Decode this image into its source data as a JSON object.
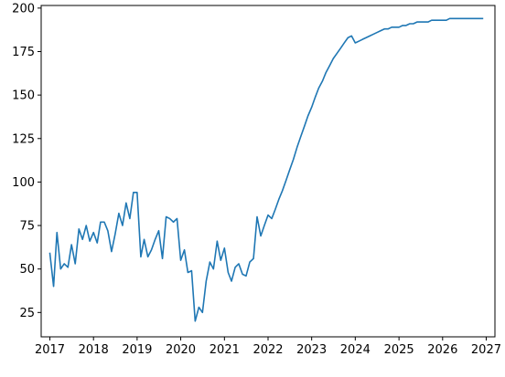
{
  "chart_data": {
    "type": "line",
    "title": "",
    "xlabel": "",
    "ylabel": "",
    "xlim": [
      "2016-10-20",
      "2027-03-15"
    ],
    "ylim": [
      11,
      201.5
    ],
    "xticks": [
      {
        "value": "2017-01-01",
        "label": "2017"
      },
      {
        "value": "2018-01-01",
        "label": "2018"
      },
      {
        "value": "2019-01-01",
        "label": "2019"
      },
      {
        "value": "2020-01-01",
        "label": "2020"
      },
      {
        "value": "2021-01-01",
        "label": "2021"
      },
      {
        "value": "2022-01-01",
        "label": "2022"
      },
      {
        "value": "2023-01-01",
        "label": "2023"
      },
      {
        "value": "2024-01-01",
        "label": "2024"
      },
      {
        "value": "2025-01-01",
        "label": "2025"
      },
      {
        "value": "2026-01-01",
        "label": "2026"
      },
      {
        "value": "2027-01-01",
        "label": "2027"
      }
    ],
    "yticks": [
      {
        "value": 25,
        "label": "25"
      },
      {
        "value": 50,
        "label": "50"
      },
      {
        "value": 75,
        "label": "75"
      },
      {
        "value": 100,
        "label": "100"
      },
      {
        "value": 125,
        "label": "125"
      },
      {
        "value": 150,
        "label": "150"
      },
      {
        "value": 175,
        "label": "175"
      },
      {
        "value": 200,
        "label": "200"
      }
    ],
    "grid": false,
    "legend": "none",
    "color": "#1f77b4",
    "series": [
      {
        "x": [
          "2017-01-01",
          "2017-02-01",
          "2017-03-01",
          "2017-04-01",
          "2017-05-01",
          "2017-06-01",
          "2017-07-01",
          "2017-08-01",
          "2017-09-01",
          "2017-10-01",
          "2017-11-01",
          "2017-12-01",
          "2018-01-01",
          "2018-02-01",
          "2018-03-01",
          "2018-04-01",
          "2018-05-01",
          "2018-06-01",
          "2018-07-01",
          "2018-08-01",
          "2018-09-01",
          "2018-10-01",
          "2018-11-01",
          "2018-12-01",
          "2019-01-01",
          "2019-02-01",
          "2019-03-01",
          "2019-04-01",
          "2019-05-01",
          "2019-06-01",
          "2019-07-01",
          "2019-08-01",
          "2019-09-01",
          "2019-10-01",
          "2019-11-01",
          "2019-12-01",
          "2020-01-01",
          "2020-02-01",
          "2020-03-01",
          "2020-04-01",
          "2020-05-01",
          "2020-06-01",
          "2020-07-01",
          "2020-08-01",
          "2020-09-01",
          "2020-10-01",
          "2020-11-01",
          "2020-12-01",
          "2021-01-01",
          "2021-02-01",
          "2021-03-01",
          "2021-04-01",
          "2021-05-01",
          "2021-06-01",
          "2021-07-01",
          "2021-08-01",
          "2021-09-01",
          "2021-10-01",
          "2021-11-01",
          "2021-12-01",
          "2022-01-01",
          "2022-02-01",
          "2022-03-01",
          "2022-04-01",
          "2022-05-01",
          "2022-06-01",
          "2022-07-01",
          "2022-08-01",
          "2022-09-01",
          "2022-10-01",
          "2022-11-01",
          "2022-12-01",
          "2023-01-01",
          "2023-02-01",
          "2023-03-01",
          "2023-04-01",
          "2023-05-01",
          "2023-06-01",
          "2023-07-01",
          "2023-08-01",
          "2023-09-01",
          "2023-10-01",
          "2023-11-01",
          "2023-12-01",
          "2024-01-01",
          "2024-02-01",
          "2024-03-01",
          "2024-04-01",
          "2024-05-01",
          "2024-06-01",
          "2024-07-01",
          "2024-08-01",
          "2024-09-01",
          "2024-10-01",
          "2024-11-01",
          "2024-12-01",
          "2025-01-01",
          "2025-02-01",
          "2025-03-01",
          "2025-04-01",
          "2025-05-01",
          "2025-06-01",
          "2025-07-01",
          "2025-08-01",
          "2025-09-01",
          "2025-10-01",
          "2025-11-01",
          "2025-12-01",
          "2026-01-01",
          "2026-02-01",
          "2026-03-01",
          "2026-04-01",
          "2026-05-01",
          "2026-06-01",
          "2026-07-01",
          "2026-08-01",
          "2026-09-01",
          "2026-10-01",
          "2026-11-01",
          "2026-12-01"
        ],
        "y": [
          59,
          40,
          71,
          50,
          53,
          51,
          64,
          53,
          73,
          67,
          75,
          66,
          71,
          65,
          77,
          77,
          72,
          60,
          70,
          82,
          75,
          88,
          79,
          94,
          94,
          57,
          67,
          57,
          61,
          67,
          72,
          56,
          80,
          79,
          77,
          79,
          55,
          61,
          48,
          49,
          20,
          28,
          25,
          43,
          54,
          50,
          66,
          55,
          62,
          48,
          43,
          51,
          53,
          47,
          46,
          54,
          56,
          80,
          69,
          75,
          81,
          79,
          84,
          90,
          95,
          101,
          107,
          113,
          120,
          126,
          132,
          138,
          143,
          149,
          154,
          158,
          163,
          167,
          171,
          174,
          177,
          180,
          183,
          184,
          180,
          181,
          182,
          183,
          184,
          185,
          186,
          187,
          188,
          188,
          189,
          189,
          189,
          190,
          190,
          191,
          191,
          192,
          192,
          192,
          192,
          193,
          193,
          193,
          193,
          193,
          194,
          194,
          194,
          194,
          194,
          194,
          194,
          194,
          194,
          194
        ]
      }
    ]
  }
}
